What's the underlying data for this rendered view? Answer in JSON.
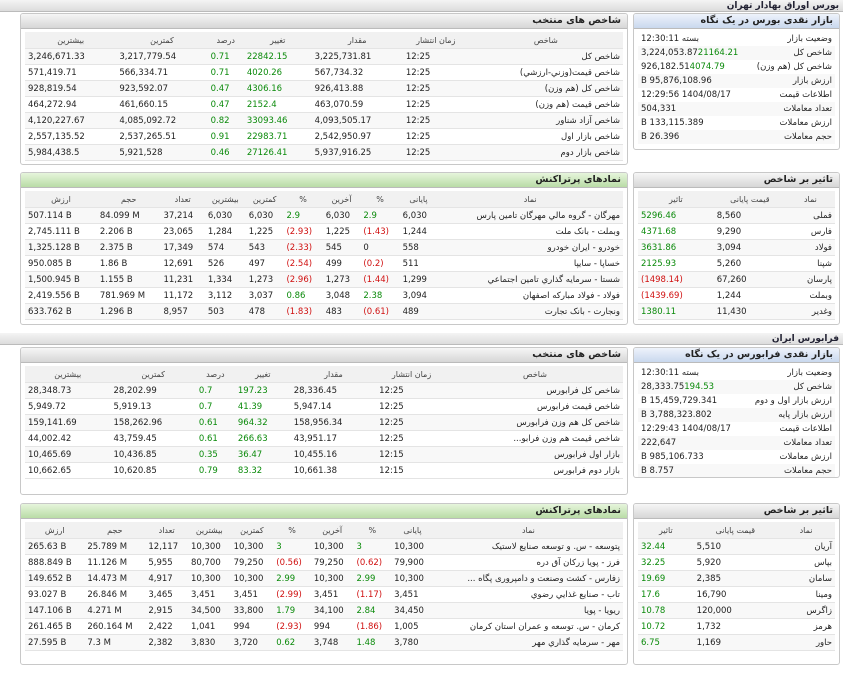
{
  "sections": [
    {
      "title": "بورس اوراق بهادار تهران",
      "summary": {
        "title": "بازار نقدی بورس در یک نگاه",
        "rows": [
          [
            "وضعیت بازار",
            "بسته 12:30:11"
          ],
          [
            "شاخص کل",
            "3,224,053.87",
            "21164.21"
          ],
          [
            "شاخص کل (هم وزن)",
            "926,182.51",
            "4074.79"
          ],
          [
            "ارزش بازار",
            "95,876,108.96 B"
          ],
          [
            "اطلاعات قیمت",
            "1404/08/17 12:29:56"
          ],
          [
            "تعداد معاملات",
            "504,331"
          ],
          [
            "ارزش معاملات",
            "133,115.389 B"
          ],
          [
            "حجم معاملات",
            "26.396 B"
          ]
        ]
      },
      "indexes": {
        "title": "شاخص های منتخب",
        "columns": [
          "شاخص",
          "زمان انتشار",
          "مقدار",
          "تغییر",
          "درصد",
          "کمترین",
          "بیشترین"
        ],
        "rows": [
          [
            "شاخص کل",
            "12:25",
            "3,225,731.81",
            "22842.15",
            "0.71",
            "3,217,779.54",
            "3,246,671.33"
          ],
          [
            "شاخص قیمت(وزني-ارزشي)",
            "12:25",
            "567,734.32",
            "4020.26",
            "0.71",
            "566,334.71",
            "571,419.71"
          ],
          [
            "شاخص کل (هم وزن)",
            "12:25",
            "926,413.88",
            "4306.16",
            "0.47",
            "923,592.07",
            "928,819.54"
          ],
          [
            "شاخص قیمت (هم وزن)",
            "12:25",
            "463,070.59",
            "2152.4",
            "0.47",
            "461,660.15",
            "464,272.94"
          ],
          [
            "شاخص آزاد شناور",
            "12:25",
            "4,093,505.17",
            "33093.46",
            "0.82",
            "4,085,092.72",
            "4,120,227.67"
          ],
          [
            "شاخص بازار اول",
            "12:25",
            "2,542,950.97",
            "22983.71",
            "0.91",
            "2,537,265.51",
            "2,557,135.52"
          ],
          [
            "شاخص بازار دوم",
            "12:25",
            "5,937,916.25",
            "27126.41",
            "0.46",
            "5,921,528",
            "5,984,438.5"
          ]
        ]
      },
      "impact": {
        "title": "تاثیر بر شاخص",
        "columns": [
          "نماد",
          "قیمت پایانی",
          "تاثیر"
        ],
        "rows": [
          [
            "فملی",
            "8,560",
            "5296.46"
          ],
          [
            "فارس",
            "9,290",
            "4371.68"
          ],
          [
            "فولاد",
            "3,094",
            "3631.86"
          ],
          [
            "شپنا",
            "5,260",
            "2125.93"
          ],
          [
            "پارسان",
            "67,260",
            "(1498.14)"
          ],
          [
            "وبملت",
            "1,244",
            "(1439.69)"
          ],
          [
            "وغدیر",
            "11,430",
            "1380.11"
          ]
        ]
      },
      "symbols": {
        "title": "نمادهای پرتراکنش",
        "columns": [
          "نماد",
          "پایانی",
          "%",
          "آخرین",
          "%",
          "کمترین",
          "بیشترین",
          "تعداد",
          "حجم",
          "ارزش"
        ],
        "rows": [
          [
            "مهرگان - گروه مالي مهرگان تامين پارس",
            "6,030",
            "2.9",
            "6,030",
            "2.9",
            "6,030",
            "6,030",
            "37,214",
            "84.099 M",
            "507.114 B"
          ],
          [
            "وبملت - بانک ملت",
            "1,244",
            "(1.43)",
            "1,225",
            "(2.93)",
            "1,225",
            "1,284",
            "23,065",
            "2.206 B",
            "2,745.111 B"
          ],
          [
            "خودرو - ايران خودرو",
            "558",
            "0",
            "545",
            "(2.33)",
            "543",
            "574",
            "17,349",
            "2.375 B",
            "1,325.128 B"
          ],
          [
            "خساپا - سايپا",
            "511",
            "(0.2)",
            "499",
            "(2.54)",
            "497",
            "526",
            "12,691",
            "1.86 B",
            "950.085 B"
          ],
          [
            "شستا - سرمايه گذاري تامين اجتماعي",
            "1,299",
            "(1.44)",
            "1,273",
            "(2.96)",
            "1,273",
            "1,334",
            "11,231",
            "1.155 B",
            "1,500.945 B"
          ],
          [
            "فولاد - فولاد مباركه اصفهان",
            "3,094",
            "2.38",
            "3,048",
            "0.86",
            "3,037",
            "3,112",
            "11,172",
            "781.969 M",
            "2,419.556 B"
          ],
          [
            "ونجارت - بانک تجارت",
            "489",
            "(0.61)",
            "483",
            "(1.83)",
            "478",
            "503",
            "8,957",
            "1.296 B",
            "633.762 B"
          ]
        ]
      }
    },
    {
      "title": "فرابورس ایران",
      "summary": {
        "title": "بازار نقدی فرابورس در یک نگاه",
        "rows": [
          [
            "وضعیت بازار",
            "بسته 12:30:11"
          ],
          [
            "شاخص کل",
            "28,333.75",
            "194.53"
          ],
          [
            "ارزش بازار اول و دوم",
            "15,459,729.341 B"
          ],
          [
            "ارزش بازار پایه",
            "3,788,323.802 B"
          ],
          [
            "اطلاعات قیمت",
            "1404/08/17 12:29:43"
          ],
          [
            "تعداد معاملات",
            "222,647"
          ],
          [
            "ارزش معاملات",
            "985,106.733 B"
          ],
          [
            "حجم معاملات",
            "8.757 B"
          ]
        ]
      },
      "indexes": {
        "title": "شاخص های منتخب",
        "columns": [
          "شاخص",
          "زمان انتشار",
          "مقدار",
          "تغییر",
          "درصد",
          "کمترین",
          "بیشترین"
        ],
        "rows": [
          [
            "شاخص کل فرابورس",
            "12:25",
            "28,336.45",
            "197.23",
            "0.7",
            "28,202.99",
            "28,348.73"
          ],
          [
            "شاخص قیمت فرابورس",
            "12:25",
            "5,947.14",
            "41.39",
            "0.7",
            "5,919.13",
            "5,949.72"
          ],
          [
            "شاخص کل هم وزن فرابورس",
            "12:25",
            "158,956.34",
            "964.32",
            "0.61",
            "158,262.96",
            "159,141.69"
          ],
          [
            "شاخص قیمت هم وزن فرابو...",
            "12:25",
            "43,951.17",
            "266.63",
            "0.61",
            "43,759.45",
            "44,002.42"
          ],
          [
            "بازار اول فرابورس",
            "12:15",
            "10,455.16",
            "36.47",
            "0.35",
            "10,436.85",
            "10,465.69"
          ],
          [
            "بازار دوم فرابورس",
            "12:15",
            "10,661.38",
            "83.32",
            "0.79",
            "10,620.85",
            "10,662.65"
          ]
        ]
      },
      "impact": {
        "title": "تاثیر بر شاخص",
        "columns": [
          "نماد",
          "قیمت پایانی",
          "تاثیر"
        ],
        "rows": [
          [
            "آریان",
            "5,510",
            "32.44"
          ],
          [
            "بپاس",
            "5,920",
            "32.25"
          ],
          [
            "سامان",
            "2,385",
            "19.69"
          ],
          [
            "ومینا",
            "16,790",
            "17.6"
          ],
          [
            "زاگرس",
            "120,000",
            "10.78"
          ],
          [
            "هرمز",
            "1,732",
            "10.72"
          ],
          [
            "حاور",
            "1,169",
            "6.75"
          ]
        ]
      },
      "symbols": {
        "title": "نمادهای پرتراکنش",
        "columns": [
          "نماد",
          "پایانی",
          "%",
          "آخرین",
          "%",
          "کمترین",
          "بیشترین",
          "تعداد",
          "حجم",
          "ارزش"
        ],
        "rows": [
          [
            "پتوسعه - س. و توسعه صنايع لاستيک",
            "10,300",
            "3",
            "10,300",
            "3",
            "10,300",
            "10,300",
            "12,117",
            "25.789 M",
            "265.63 B"
          ],
          [
            "فرز - پويا زركان آق دره",
            "79,900",
            "(0.62)",
            "79,250",
            "(0.56)",
            "79,250",
            "80,700",
            "5,955",
            "11.126 M",
            "888.849 B"
          ],
          [
            "زفارس - کشت وصنعت و دامپروری پگاه ...",
            "10,300",
            "2.99",
            "10,300",
            "2.99",
            "10,300",
            "10,300",
            "4,917",
            "14.473 M",
            "149.652 B"
          ],
          [
            "تاب - صنايع غذايي رضوي",
            "3,451",
            "(1.17)",
            "3,451",
            "(2.99)",
            "3,451",
            "3,451",
            "3,465",
            "26.846 M",
            "93.027 B"
          ],
          [
            "ريويا - پويا",
            "34,450",
            "2.84",
            "34,100",
            "1.79",
            "33,800",
            "34,500",
            "2,915",
            "4.271 M",
            "147.106 B"
          ],
          [
            "كرمان - س. توسعه و عمران استان كرمان",
            "1,005",
            "(1.86)",
            "994",
            "(2.93)",
            "994",
            "1,041",
            "2,422",
            "260.164 M",
            "261.465 B"
          ],
          [
            "مهر - سرمايه گذاري مهر",
            "3,780",
            "1.48",
            "3,748",
            "0.62",
            "3,720",
            "3,830",
            "2,382",
            "7.3 M",
            "27.595 B"
          ]
        ]
      }
    }
  ]
}
